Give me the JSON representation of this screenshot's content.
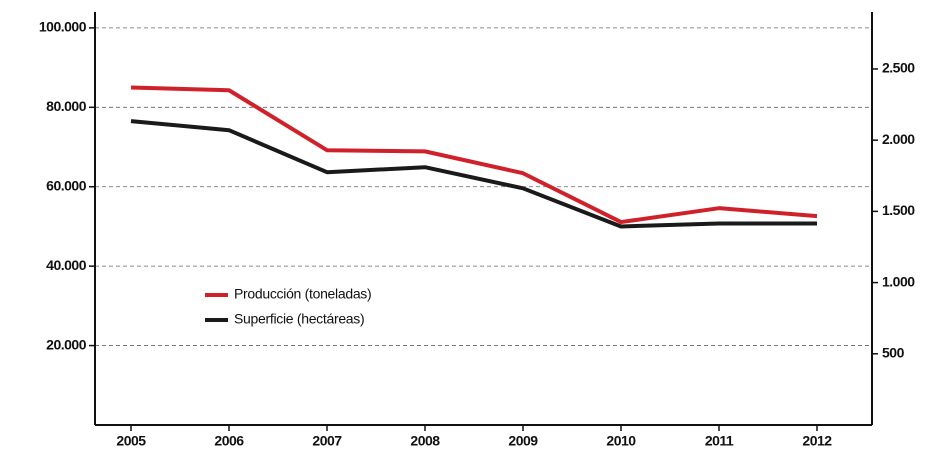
{
  "chart_data": {
    "type": "line",
    "categories": [
      "2005",
      "2006",
      "2007",
      "2008",
      "2009",
      "2010",
      "2011",
      "2012"
    ],
    "series": [
      {
        "name": "Producción (toneladas)",
        "color": "#d0202a",
        "values": [
          85000,
          84300,
          69200,
          68900,
          63400,
          51100,
          54600,
          52600
        ]
      },
      {
        "name": "Superficie (hectáreas)",
        "color": "#1a1a1a",
        "axis": "y2",
        "values": [
          2134,
          2070,
          1775,
          1810,
          1662,
          1394,
          1415,
          1415
        ]
      }
    ],
    "ylim": [
      0,
      104000
    ],
    "yticks": [
      {
        "value": 20000,
        "label": "20.000"
      },
      {
        "value": 40000,
        "label": "40.000"
      },
      {
        "value": 60000,
        "label": "60.000"
      },
      {
        "value": 80000,
        "label": "80.000"
      },
      {
        "value": 100000,
        "label": "100.000"
      }
    ],
    "y2lim": [
      0,
      2900
    ],
    "y2ticks": [
      500,
      {
        "value": 1000,
        "label": "1.000"
      },
      {
        "value": 1500,
        "label": "1.500"
      },
      {
        "value": 2000,
        "label": "2.000"
      },
      {
        "value": 2500,
        "label": "2.500"
      }
    ],
    "grid": true
  }
}
